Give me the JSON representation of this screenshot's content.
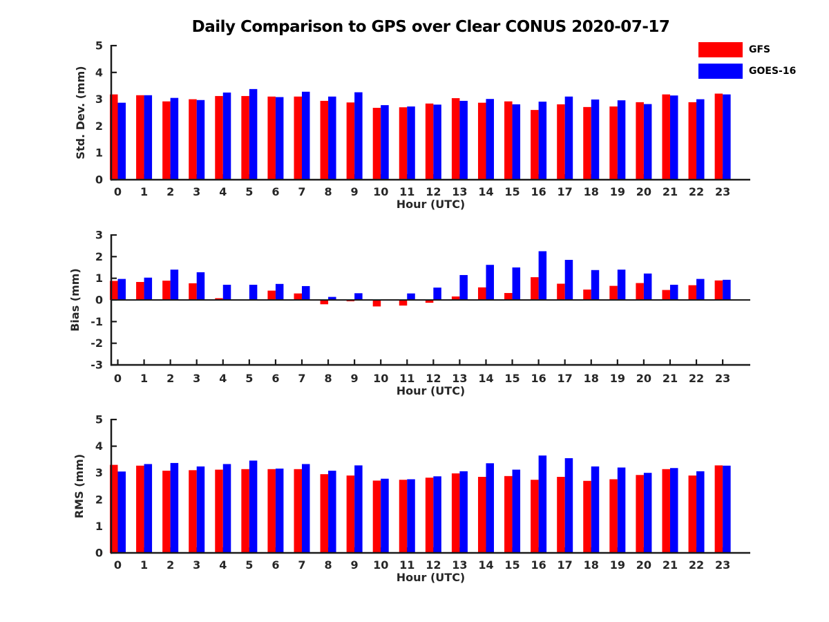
{
  "title": "Daily Comparison to GPS over Clear CONUS 2020-07-17",
  "legend": {
    "position": "top-right",
    "entries": [
      {
        "label": "GFS",
        "color": "#ff0000"
      },
      {
        "label": "GOES-16",
        "color": "#0000ff"
      }
    ]
  },
  "colors": {
    "gfs": "#ff0000",
    "goes16": "#0000ff",
    "axis": "#1a1a1a",
    "text": "#262626",
    "background": "#ffffff"
  },
  "chart_data": [
    {
      "type": "bar",
      "title": "",
      "ylabel": "Std. Dev. (mm)",
      "xlabel": "Hour (UTC)",
      "ylim": [
        0,
        5
      ],
      "yticks": [
        0,
        1,
        2,
        3,
        4,
        5
      ],
      "grid": false,
      "zero_line": false,
      "categories": [
        "0",
        "1",
        "2",
        "3",
        "4",
        "5",
        "6",
        "7",
        "8",
        "9",
        "10",
        "11",
        "12",
        "13",
        "14",
        "15",
        "16",
        "17",
        "18",
        "19",
        "20",
        "21",
        "22",
        "23"
      ],
      "series": [
        {
          "name": "GFS",
          "color": "#ff0000",
          "values": [
            3.18,
            3.15,
            2.92,
            3.0,
            3.12,
            3.12,
            3.1,
            3.1,
            2.94,
            2.88,
            2.68,
            2.7,
            2.84,
            3.04,
            2.87,
            2.92,
            2.6,
            2.81,
            2.71,
            2.73,
            2.89,
            3.18,
            2.89,
            3.21
          ]
        },
        {
          "name": "GOES-16",
          "color": "#0000ff",
          "values": [
            2.87,
            3.15,
            3.05,
            2.97,
            3.25,
            3.38,
            3.08,
            3.28,
            3.1,
            3.26,
            2.78,
            2.73,
            2.8,
            2.94,
            3.01,
            2.81,
            2.91,
            3.1,
            2.99,
            2.96,
            2.82,
            3.14,
            3.0,
            3.18
          ]
        }
      ]
    },
    {
      "type": "bar",
      "title": "",
      "ylabel": "Bias (mm)",
      "xlabel": "Hour (UTC)",
      "ylim": [
        -3,
        3
      ],
      "yticks": [
        -3,
        -2,
        -1,
        0,
        1,
        2,
        3
      ],
      "grid": false,
      "zero_line": true,
      "categories": [
        "0",
        "1",
        "2",
        "3",
        "4",
        "5",
        "6",
        "7",
        "8",
        "9",
        "10",
        "11",
        "12",
        "13",
        "14",
        "15",
        "16",
        "17",
        "18",
        "19",
        "20",
        "21",
        "22",
        "23"
      ],
      "series": [
        {
          "name": "GFS",
          "color": "#ff0000",
          "values": [
            0.88,
            0.83,
            0.89,
            0.77,
            0.08,
            0.03,
            0.43,
            0.3,
            -0.2,
            -0.06,
            -0.3,
            -0.26,
            -0.13,
            0.16,
            0.58,
            0.32,
            1.05,
            0.75,
            0.48,
            0.65,
            0.78,
            0.46,
            0.68,
            0.9
          ]
        },
        {
          "name": "GOES-16",
          "color": "#0000ff",
          "values": [
            0.97,
            1.03,
            1.4,
            1.28,
            0.7,
            0.7,
            0.74,
            0.64,
            0.14,
            0.31,
            0.02,
            0.3,
            0.57,
            1.15,
            1.62,
            1.5,
            2.25,
            1.85,
            1.38,
            1.4,
            1.22,
            0.7,
            0.97,
            0.93
          ]
        }
      ]
    },
    {
      "type": "bar",
      "title": "",
      "ylabel": "RMS (mm)",
      "xlabel": "Hour (UTC)",
      "ylim": [
        0,
        5
      ],
      "yticks": [
        0,
        1,
        2,
        3,
        4,
        5
      ],
      "grid": false,
      "zero_line": false,
      "categories": [
        "0",
        "1",
        "2",
        "3",
        "4",
        "5",
        "6",
        "7",
        "8",
        "9",
        "10",
        "11",
        "12",
        "13",
        "14",
        "15",
        "16",
        "17",
        "18",
        "19",
        "20",
        "21",
        "22",
        "23"
      ],
      "series": [
        {
          "name": "GFS",
          "color": "#ff0000",
          "values": [
            3.3,
            3.27,
            3.08,
            3.1,
            3.12,
            3.14,
            3.14,
            3.14,
            2.95,
            2.9,
            2.71,
            2.74,
            2.82,
            2.98,
            2.85,
            2.88,
            2.74,
            2.85,
            2.7,
            2.76,
            2.92,
            3.14,
            2.9,
            3.28
          ]
        },
        {
          "name": "GOES-16",
          "color": "#0000ff",
          "values": [
            3.05,
            3.33,
            3.37,
            3.24,
            3.33,
            3.46,
            3.16,
            3.33,
            3.08,
            3.28,
            2.78,
            2.76,
            2.87,
            3.06,
            3.36,
            3.12,
            3.65,
            3.55,
            3.24,
            3.2,
            3.0,
            3.18,
            3.06,
            3.27
          ]
        }
      ]
    }
  ]
}
